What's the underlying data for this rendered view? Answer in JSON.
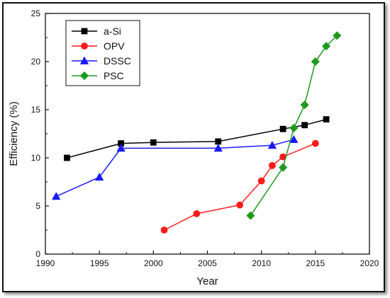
{
  "chart_data": {
    "type": "line",
    "title": "",
    "xlabel": "Year",
    "ylabel": "Efficiency (%)",
    "xlim": [
      1990,
      2020
    ],
    "ylim": [
      0,
      25
    ],
    "x_ticks": [
      1990,
      1995,
      2000,
      2005,
      2010,
      2015,
      2020
    ],
    "y_ticks": [
      0,
      5,
      10,
      15,
      20,
      25
    ],
    "legend_position": "top-left",
    "grid": false,
    "series": [
      {
        "name": "a-Si",
        "color": "#000000",
        "marker": "square",
        "x": [
          1992,
          1997,
          2000,
          2006,
          2012,
          2014,
          2016
        ],
        "y": [
          10.0,
          11.5,
          11.6,
          11.7,
          13.0,
          13.4,
          14.0
        ]
      },
      {
        "name": "OPV",
        "color": "#ff1a1a",
        "marker": "circle",
        "x": [
          2001,
          2004,
          2008,
          2010,
          2011,
          2012,
          2015
        ],
        "y": [
          2.5,
          4.2,
          5.1,
          7.6,
          9.2,
          10.1,
          11.5
        ]
      },
      {
        "name": "DSSC",
        "color": "#1a1aff",
        "marker": "triangle",
        "x": [
          1991,
          1995,
          1997,
          2006,
          2011,
          2013
        ],
        "y": [
          6.0,
          8.0,
          11.0,
          11.0,
          11.3,
          11.9
        ]
      },
      {
        "name": "PSC",
        "color": "#1e9a1e",
        "marker": "diamond",
        "x": [
          2009,
          2012,
          2013,
          2014,
          2015,
          2016,
          2017
        ],
        "y": [
          4.0,
          9.0,
          13.1,
          15.5,
          20.0,
          21.6,
          22.7
        ]
      }
    ]
  }
}
